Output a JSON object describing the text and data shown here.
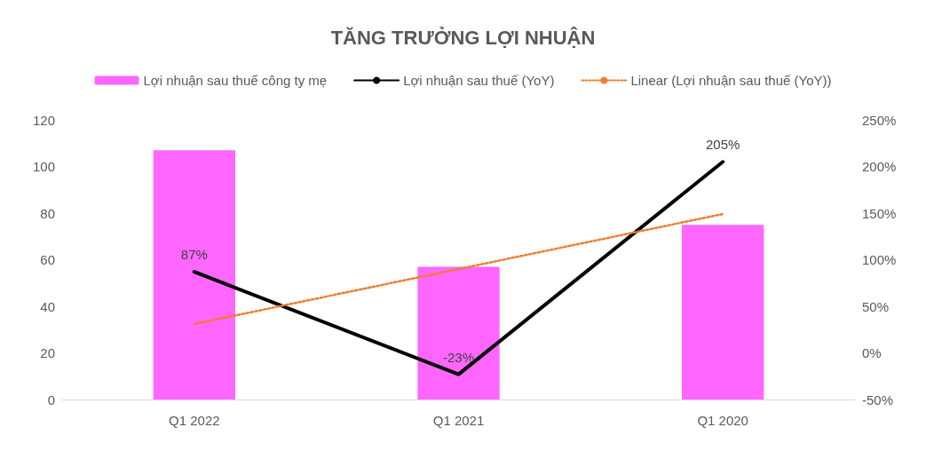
{
  "chart_data": {
    "type": "bar",
    "title": "TĂNG TRƯỞNG LỢI NHUẬN",
    "categories": [
      "Q1 2022",
      "Q1 2021",
      "Q1 2020"
    ],
    "series": [
      {
        "name": "Lợi nhuận sau thuế công ty mẹ",
        "color": "#ff66ff",
        "values": [
          107,
          57,
          75
        ]
      },
      {
        "name": "Lợi nhuận sau thuế (YoY)",
        "type": "line",
        "axis": "y2",
        "color": "#000000",
        "values": [
          87,
          -23,
          205
        ],
        "value_labels": [
          "87%",
          "-23%",
          "205%"
        ],
        "line_style": "solid"
      },
      {
        "name": "Linear (Lợi nhuận sau thuế (YoY))",
        "type": "line",
        "axis": "y2",
        "color": "#ed7d31",
        "values": [
          31,
          90,
          149
        ],
        "line_style": "dotted"
      }
    ],
    "ylim": [
      0,
      120
    ],
    "yticks": [
      0,
      20,
      40,
      60,
      80,
      100,
      120
    ],
    "y2lim": [
      -50,
      250
    ],
    "y2ticks": [
      {
        "value": -50,
        "label": "-50%"
      },
      {
        "value": 0,
        "label": "0%"
      },
      {
        "value": 50,
        "label": "50%"
      },
      {
        "value": 100,
        "label": "100%"
      },
      {
        "value": 150,
        "label": "150%"
      },
      {
        "value": 200,
        "label": "200%"
      },
      {
        "value": 250,
        "label": "250%"
      }
    ],
    "grid": false,
    "legend": "top"
  }
}
